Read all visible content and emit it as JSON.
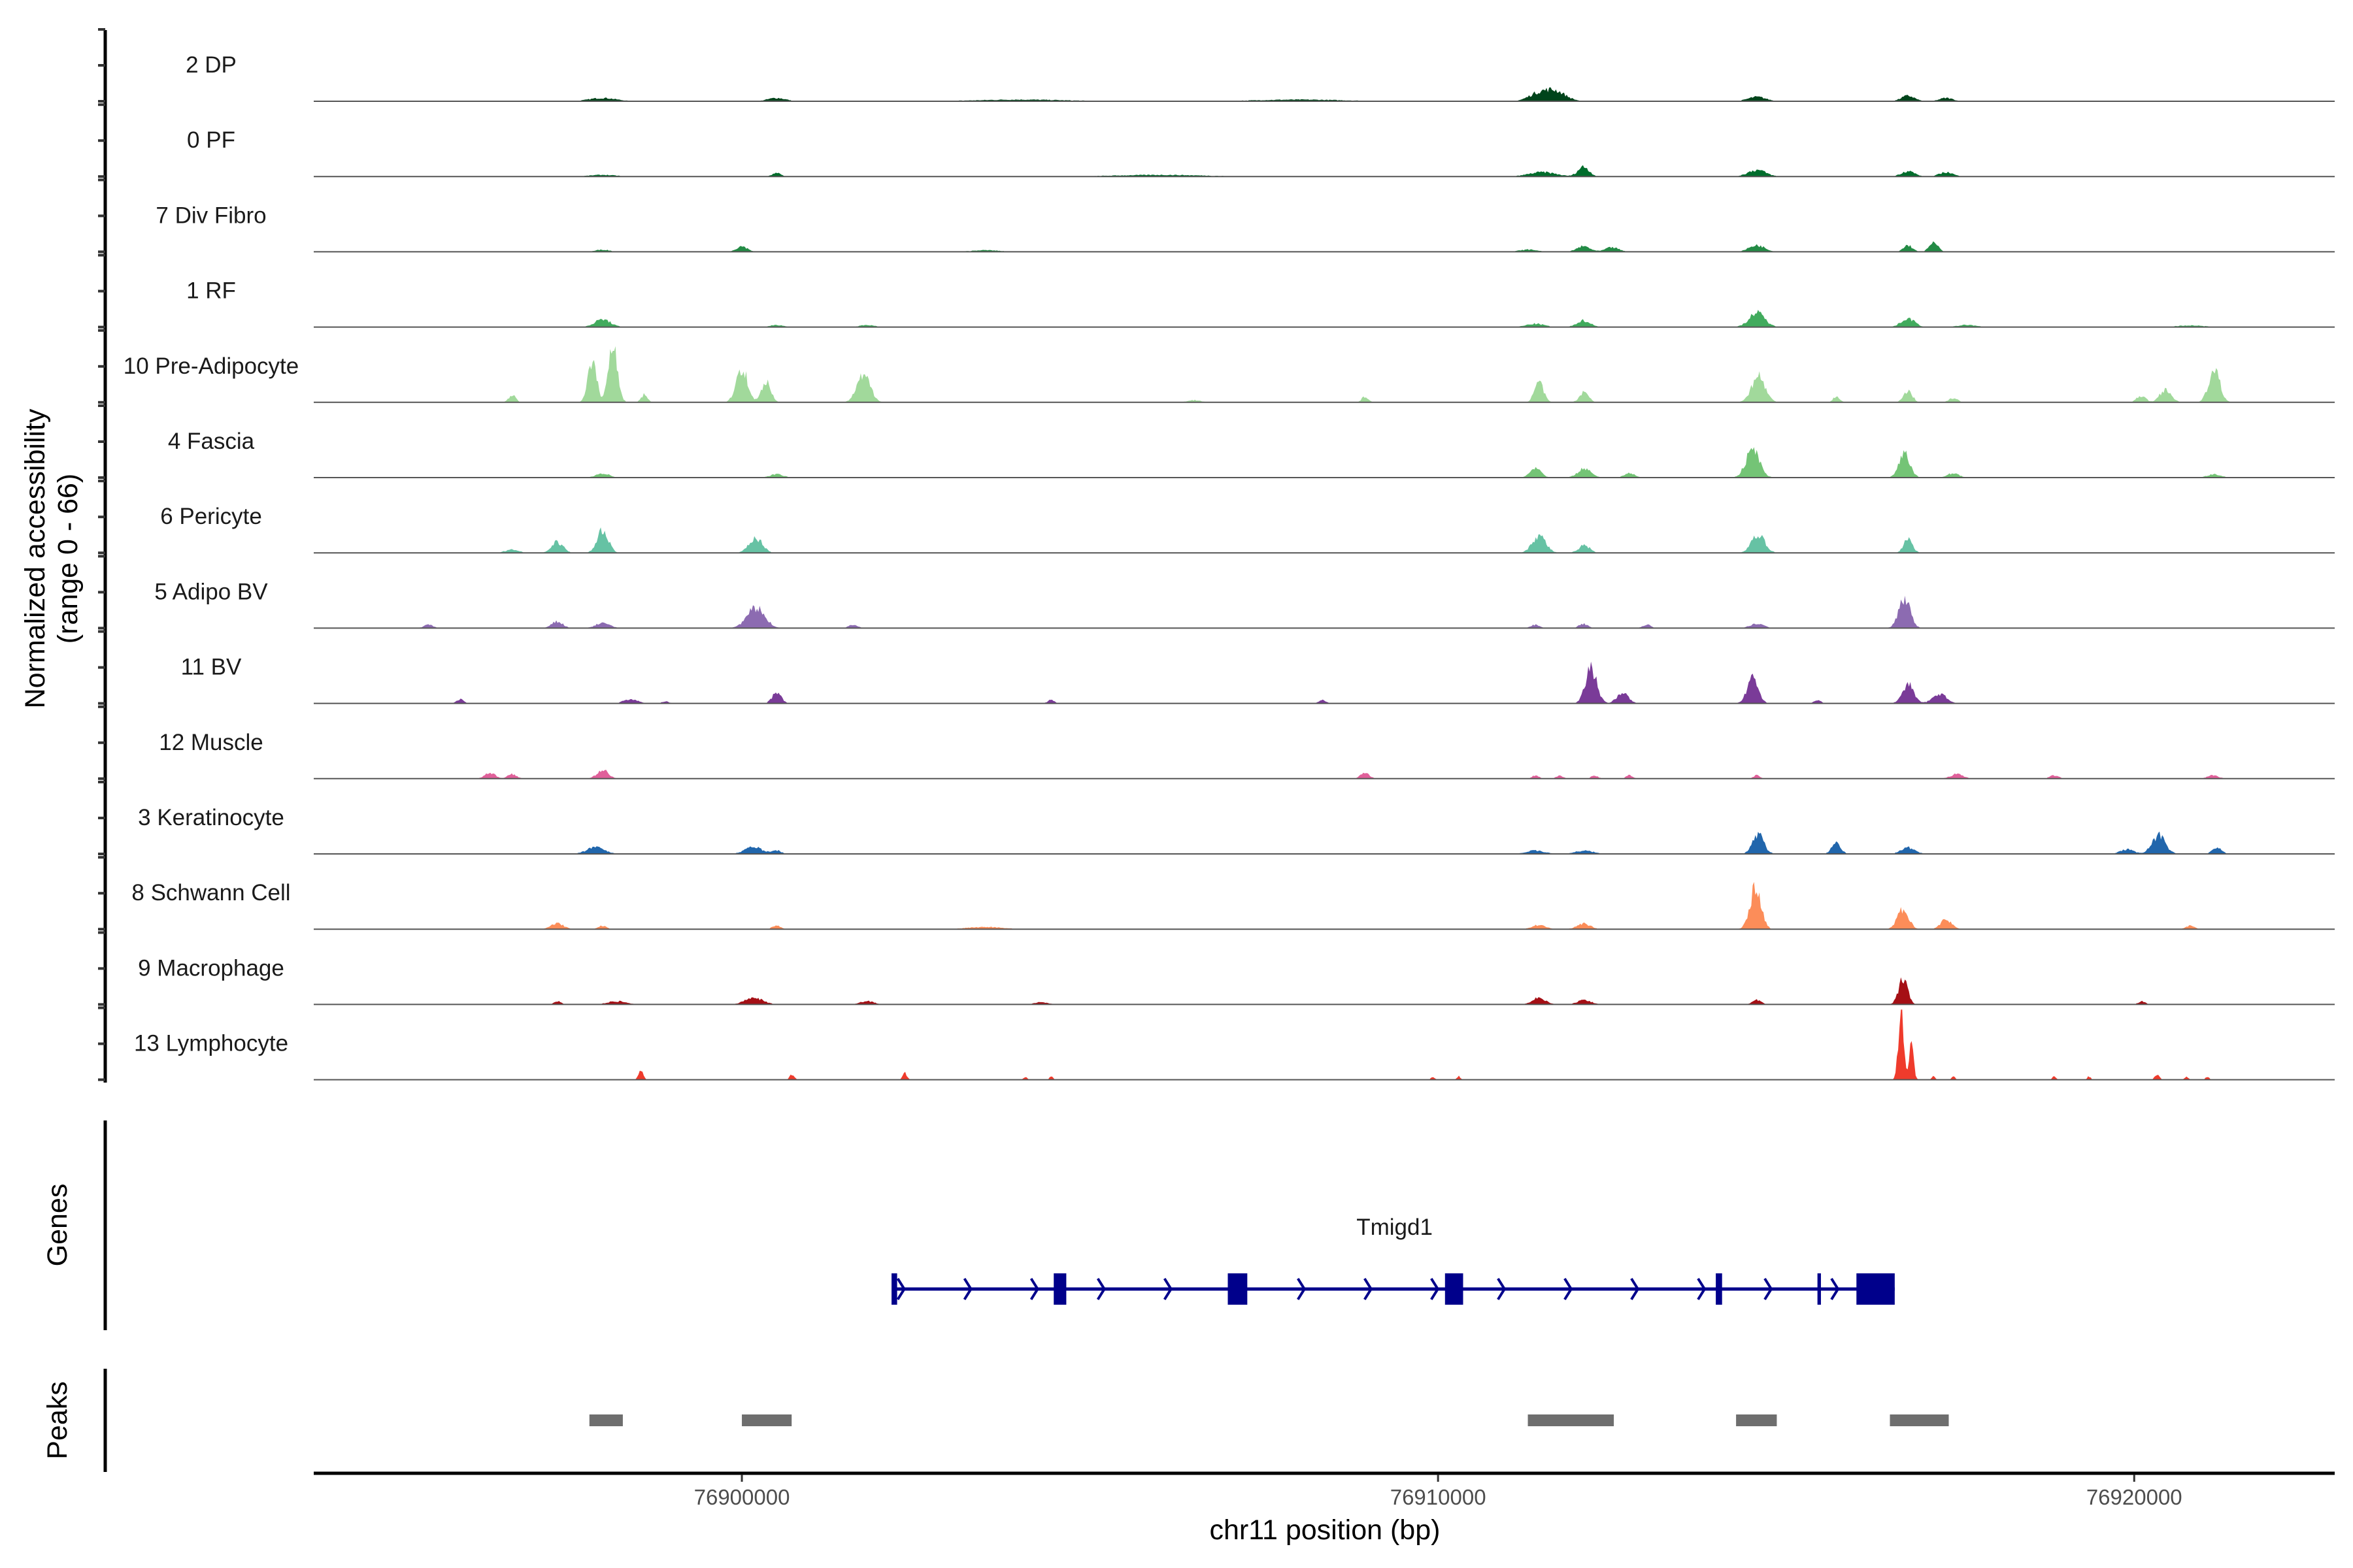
{
  "chart_data": {
    "type": "area",
    "title": "",
    "xlabel": "chr11 position (bp)",
    "ylabel": "Normalized accessibility",
    "ylabel_sub": "(range 0 - 66)",
    "xlim": [
      76893850,
      76922880
    ],
    "ylim": [
      0,
      66
    ],
    "xticks": [
      {
        "value": 76900000,
        "label": "76900000"
      },
      {
        "value": 76910000,
        "label": "76910000"
      },
      {
        "value": 76920000,
        "label": "76920000"
      }
    ],
    "tracks": [
      {
        "name": "2 DP",
        "color": "#00441b",
        "peaks": [
          [
            76911660,
            10,
            500
          ],
          [
            76911400,
            5,
            400
          ],
          [
            76914580,
            4,
            400
          ],
          [
            76916750,
            5,
            300
          ],
          [
            76917300,
            3,
            300
          ],
          [
            76898000,
            3,
            600
          ],
          [
            76900500,
            3,
            400
          ],
          [
            76904000,
            1.5,
            2000
          ],
          [
            76908000,
            1.5,
            2000
          ]
        ]
      },
      {
        "name": "0 PF",
        "color": "#006d2c",
        "peaks": [
          [
            76912090,
            9,
            250
          ],
          [
            76911500,
            4,
            600
          ],
          [
            76914580,
            6,
            400
          ],
          [
            76916750,
            5,
            300
          ],
          [
            76917300,
            4,
            300
          ],
          [
            76900500,
            3,
            200
          ],
          [
            76898000,
            1.5,
            600
          ],
          [
            76906000,
            1.5,
            2000
          ]
        ]
      },
      {
        "name": "7 Div Fibro",
        "color": "#238b45",
        "peaks": [
          [
            76900000,
            5,
            250
          ],
          [
            76914580,
            6,
            350
          ],
          [
            76916750,
            6,
            200
          ],
          [
            76917120,
            8,
            200
          ],
          [
            76912090,
            5,
            300
          ],
          [
            76912500,
            4,
            300
          ],
          [
            76911300,
            2,
            400
          ],
          [
            76898000,
            2,
            300
          ],
          [
            76903500,
            1.5,
            600
          ]
        ]
      },
      {
        "name": "1 RF",
        "color": "#41ab5d",
        "peaks": [
          [
            76898000,
            7,
            350
          ],
          [
            76914580,
            13,
            350
          ],
          [
            76916750,
            8,
            300
          ],
          [
            76912090,
            6,
            300
          ],
          [
            76911400,
            3,
            400
          ],
          [
            76900500,
            2,
            300
          ],
          [
            76901800,
            2,
            300
          ],
          [
            76917600,
            2,
            400
          ],
          [
            76920800,
            1.5,
            600
          ]
        ]
      },
      {
        "name": "10 Pre-Adipocyte",
        "color": "#a1d99b",
        "peaks": [
          [
            76898150,
            53,
            200
          ],
          [
            76897850,
            36,
            200
          ],
          [
            76900000,
            32,
            250
          ],
          [
            76900350,
            20,
            200
          ],
          [
            76901750,
            24,
            300
          ],
          [
            76911450,
            18,
            200
          ],
          [
            76912100,
            10,
            200
          ],
          [
            76914600,
            24,
            300
          ],
          [
            76916750,
            10,
            200
          ],
          [
            76921150,
            29,
            250
          ],
          [
            76920450,
            12,
            250
          ],
          [
            76920100,
            6,
            200
          ],
          [
            76896700,
            7,
            150
          ],
          [
            76898600,
            7,
            150
          ],
          [
            76908950,
            5,
            150
          ],
          [
            76915720,
            5,
            150
          ],
          [
            76917400,
            4,
            200
          ],
          [
            76906500,
            2,
            300
          ]
        ]
      },
      {
        "name": "4 Fascia",
        "color": "#74c476",
        "peaks": [
          [
            76914520,
            26,
            300
          ],
          [
            76916700,
            21,
            250
          ],
          [
            76911400,
            8,
            250
          ],
          [
            76912100,
            8,
            300
          ],
          [
            76912750,
            4,
            250
          ],
          [
            76898000,
            4,
            300
          ],
          [
            76900500,
            3,
            300
          ],
          [
            76917400,
            4,
            250
          ],
          [
            76921150,
            3,
            300
          ]
        ]
      },
      {
        "name": "6 Pericyte",
        "color": "#66c2a4",
        "peaks": [
          [
            76898000,
            20,
            250
          ],
          [
            76897350,
            10,
            250
          ],
          [
            76900200,
            13,
            300
          ],
          [
            76911450,
            16,
            300
          ],
          [
            76912100,
            7,
            250
          ],
          [
            76914600,
            16,
            300
          ],
          [
            76916750,
            12,
            200
          ],
          [
            76896700,
            3,
            300
          ]
        ]
      },
      {
        "name": "5 Adipo BV",
        "color": "#8c6bb1",
        "peaks": [
          [
            76900200,
            18,
            400
          ],
          [
            76916700,
            28,
            250
          ],
          [
            76897350,
            6,
            250
          ],
          [
            76898000,
            5,
            300
          ],
          [
            76912090,
            4,
            200
          ],
          [
            76914580,
            4,
            300
          ],
          [
            76895500,
            3,
            200
          ],
          [
            76901600,
            3,
            200
          ],
          [
            76911400,
            3,
            200
          ],
          [
            76913000,
            3,
            200
          ]
        ]
      },
      {
        "name": "11 BV",
        "color": "#7a3b98",
        "peaks": [
          [
            76912200,
            32,
            250
          ],
          [
            76912650,
            10,
            250
          ],
          [
            76914520,
            22,
            250
          ],
          [
            76916750,
            18,
            250
          ],
          [
            76917200,
            9,
            300
          ],
          [
            76900500,
            10,
            200
          ],
          [
            76895950,
            4,
            150
          ],
          [
            76898400,
            4,
            300
          ],
          [
            76908340,
            3,
            150
          ],
          [
            76915450,
            3,
            150
          ],
          [
            76904440,
            3,
            150
          ],
          [
            76898900,
            2,
            150
          ]
        ]
      },
      {
        "name": "12 Muscle",
        "color": "#e0609a",
        "peaks": [
          [
            76898000,
            8,
            250
          ],
          [
            76896380,
            5,
            250
          ],
          [
            76896700,
            4,
            200
          ],
          [
            76908950,
            5,
            200
          ],
          [
            76911400,
            3,
            150
          ],
          [
            76911750,
            3,
            150
          ],
          [
            76912250,
            3,
            150
          ],
          [
            76912750,
            3,
            150
          ],
          [
            76914580,
            3,
            150
          ],
          [
            76917450,
            4,
            300
          ],
          [
            76918850,
            3,
            200
          ],
          [
            76921130,
            3,
            250
          ]
        ]
      },
      {
        "name": "3 Keratinocyte",
        "color": "#2166ac",
        "peaks": [
          [
            76914600,
            18,
            250
          ],
          [
            76920350,
            17,
            300
          ],
          [
            76915720,
            10,
            200
          ],
          [
            76921190,
            6,
            200
          ],
          [
            76897900,
            6,
            400
          ],
          [
            76900170,
            6,
            400
          ],
          [
            76916750,
            6,
            300
          ],
          [
            76919900,
            4,
            300
          ],
          [
            76911400,
            3,
            400
          ],
          [
            76912100,
            3,
            400
          ],
          [
            76900500,
            3,
            200
          ]
        ]
      },
      {
        "name": "8 Schwann Cell",
        "color": "#fc8d59",
        "peaks": [
          [
            76914560,
            37,
            250
          ],
          [
            76916680,
            18,
            250
          ],
          [
            76917300,
            9,
            250
          ],
          [
            76912090,
            5,
            300
          ],
          [
            76911450,
            4,
            300
          ],
          [
            76897350,
            5,
            300
          ],
          [
            76898000,
            3,
            200
          ],
          [
            76900500,
            3,
            200
          ],
          [
            76920800,
            3,
            200
          ],
          [
            76903500,
            2,
            800
          ]
        ]
      },
      {
        "name": "9 Macrophage",
        "color": "#a50f15",
        "peaks": [
          [
            76916680,
            24,
            200
          ],
          [
            76900170,
            6,
            400
          ],
          [
            76911450,
            6,
            300
          ],
          [
            76912100,
            4,
            300
          ],
          [
            76914580,
            4,
            200
          ],
          [
            76920110,
            3,
            150
          ],
          [
            76898200,
            3,
            400
          ],
          [
            76901800,
            3,
            300
          ],
          [
            76897350,
            3,
            150
          ],
          [
            76904300,
            2,
            300
          ]
        ]
      },
      {
        "name": "13 Lymphocyte",
        "color": "#ef3b2c",
        "peaks": [
          [
            76916650,
            58,
            120
          ],
          [
            76916800,
            30,
            100
          ],
          [
            76898550,
            9,
            100
          ],
          [
            76900720,
            5,
            100
          ],
          [
            76902340,
            6,
            100
          ],
          [
            76904074,
            3,
            80
          ],
          [
            76904442,
            3,
            80
          ],
          [
            76909925,
            3,
            80
          ],
          [
            76910300,
            3,
            80
          ],
          [
            76917120,
            3,
            80
          ],
          [
            76917400,
            3,
            80
          ],
          [
            76918850,
            3,
            80
          ],
          [
            76919350,
            3,
            80
          ],
          [
            76920330,
            5,
            100
          ],
          [
            76920750,
            3,
            80
          ],
          [
            76921050,
            3,
            80
          ]
        ]
      }
    ],
    "genes_track": {
      "label": "Genes",
      "genes": [
        {
          "name": "Tmigd1",
          "strand": "+",
          "start": 76902190,
          "end": 76916560,
          "color": "#00008b",
          "exons": [
            [
              76902150,
              76902230
            ],
            [
              76904480,
              76904660
            ],
            [
              76906980,
              76907260
            ],
            [
              76910100,
              76910360
            ],
            [
              76913990,
              76914080
            ],
            [
              76915450,
              76915500
            ],
            [
              76916010,
              76916560
            ]
          ]
        }
      ]
    },
    "peaks_track": {
      "label": "Peaks",
      "color": "#6e6e6e",
      "regions": [
        [
          76897810,
          76898290
        ],
        [
          76900000,
          76900715
        ],
        [
          76911290,
          76912525
        ],
        [
          76914281,
          76914866
        ],
        [
          76916491,
          76917336
        ]
      ]
    }
  }
}
